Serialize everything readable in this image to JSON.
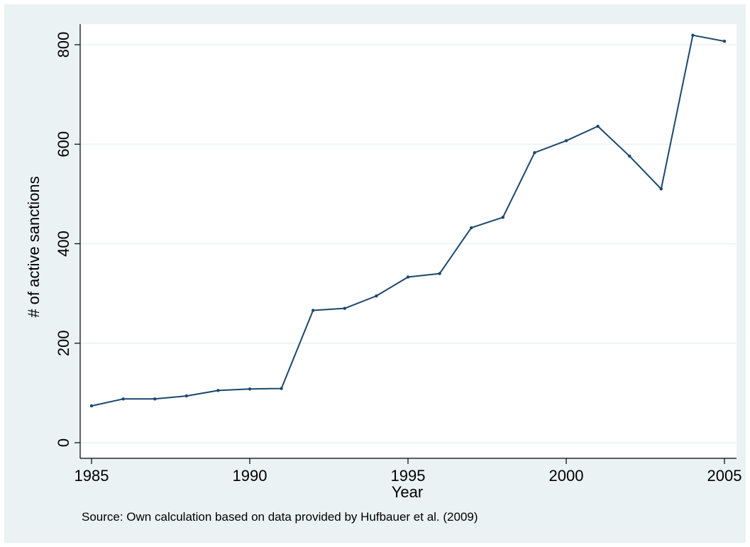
{
  "chart_data": {
    "type": "line",
    "title": "",
    "xlabel": "Year",
    "ylabel": "# of active sanctions",
    "note": "Source: Own calculation based on data provided by Hufbauer et al. (2009)",
    "xlim": [
      1985,
      2005
    ],
    "ylim": [
      0,
      800
    ],
    "xticks": [
      1985,
      1990,
      1995,
      2000,
      2005
    ],
    "yticks": [
      0,
      200,
      400,
      600,
      800
    ],
    "grid": "horizontal",
    "legend": "none",
    "series": [
      {
        "x": [
          1985,
          1986,
          1987,
          1988,
          1989,
          1990,
          1991,
          1992,
          1993,
          1994,
          1995,
          1996,
          1997,
          1998,
          1999,
          2000,
          2001,
          2002,
          2003,
          2004,
          2005
        ],
        "values": [
          74,
          88,
          88,
          94,
          105,
          108,
          109,
          266,
          270,
          295,
          333,
          340,
          432,
          453,
          583,
          607,
          636,
          576,
          510,
          819,
          807
        ],
        "color": "#1a476f"
      }
    ],
    "colors": {
      "background": "#eaf2f3",
      "plot_area": "#ffffff",
      "gridline": "#eaf2f3",
      "line": "#1a476f"
    }
  }
}
